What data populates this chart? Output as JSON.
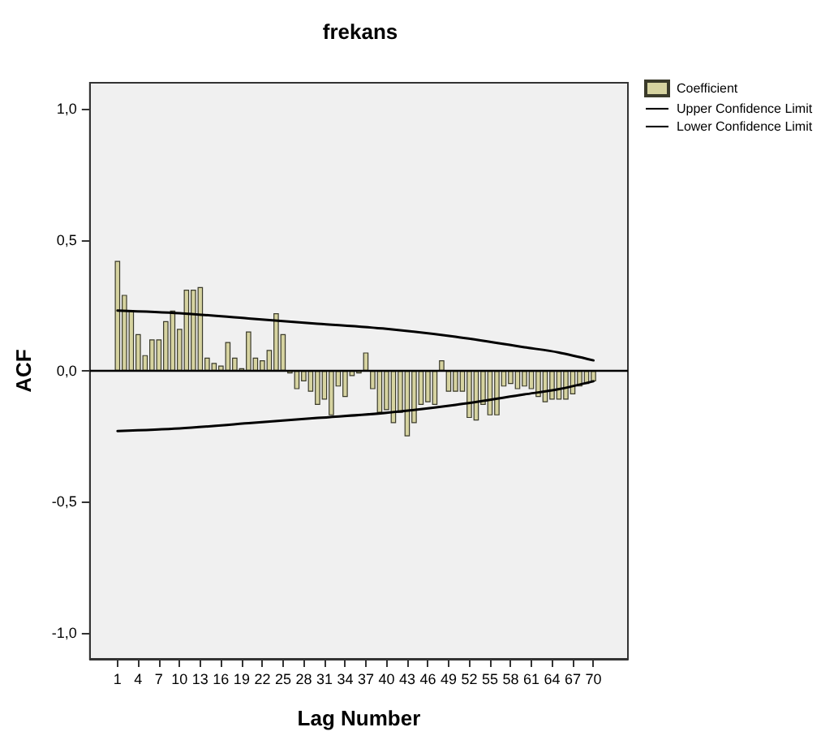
{
  "chart_data": {
    "type": "bar",
    "title": "frekans",
    "xlabel": "Lag Number",
    "ylabel": "ACF",
    "x": [
      1,
      2,
      3,
      4,
      5,
      6,
      7,
      8,
      9,
      10,
      11,
      12,
      13,
      14,
      15,
      16,
      17,
      18,
      19,
      20,
      21,
      22,
      23,
      24,
      25,
      26,
      27,
      28,
      29,
      30,
      31,
      32,
      33,
      34,
      35,
      36,
      37,
      38,
      39,
      40,
      41,
      42,
      43,
      44,
      45,
      46,
      47,
      48,
      49,
      50,
      51,
      52,
      53,
      54,
      55,
      56,
      57,
      58,
      59,
      60,
      61,
      62,
      63,
      64,
      65,
      66,
      67,
      68,
      69,
      70
    ],
    "series": [
      {
        "name": "Coefficient",
        "color": "#d6d3a0",
        "values": [
          0.42,
          0.29,
          0.23,
          0.14,
          0.06,
          0.12,
          0.12,
          0.19,
          0.23,
          0.16,
          0.31,
          0.31,
          0.32,
          0.05,
          0.03,
          0.02,
          0.11,
          0.05,
          0.01,
          0.15,
          0.05,
          0.04,
          0.08,
          0.22,
          0.14,
          -0.01,
          -0.07,
          -0.04,
          -0.08,
          -0.13,
          -0.11,
          -0.17,
          -0.06,
          -0.1,
          -0.02,
          -0.01,
          0.07,
          -0.07,
          -0.16,
          -0.15,
          -0.2,
          -0.16,
          -0.25,
          -0.2,
          -0.13,
          -0.12,
          -0.13,
          0.04,
          -0.08,
          -0.08,
          -0.08,
          -0.18,
          -0.19,
          -0.13,
          -0.17,
          -0.17,
          -0.06,
          -0.05,
          -0.07,
          -0.06,
          -0.07,
          -0.1,
          -0.12,
          -0.11,
          -0.11,
          -0.11,
          -0.09,
          -0.06,
          -0.05,
          -0.04
        ]
      },
      {
        "name": "Upper Confidence Limit",
        "type": "line",
        "color": "#000000",
        "x": [
          1,
          10,
          20,
          30,
          40,
          50,
          60,
          65,
          70
        ],
        "values": [
          0.23,
          0.22,
          0.2,
          0.18,
          0.16,
          0.13,
          0.09,
          0.07,
          0.04
        ]
      },
      {
        "name": "Lower Confidence Limit",
        "type": "line",
        "color": "#000000",
        "x": [
          1,
          10,
          20,
          30,
          40,
          50,
          60,
          65,
          70
        ],
        "values": [
          -0.23,
          -0.22,
          -0.2,
          -0.18,
          -0.16,
          -0.13,
          -0.09,
          -0.07,
          -0.04
        ]
      }
    ],
    "xlim": [
      -3,
      75
    ],
    "xticks": [
      1,
      4,
      7,
      10,
      13,
      16,
      19,
      22,
      25,
      28,
      31,
      34,
      37,
      40,
      43,
      46,
      49,
      52,
      55,
      58,
      61,
      64,
      67,
      70
    ],
    "ylim": [
      -1.1,
      1.1
    ],
    "yticks": [
      {
        "value": -1,
        "label": "-1,0"
      },
      {
        "value": -0.5,
        "label": "-0,5"
      },
      {
        "value": 0,
        "label": "0,0"
      },
      {
        "value": 0.5,
        "label": "0,5"
      },
      {
        "value": 1,
        "label": "1,0"
      }
    ],
    "ref_lines": [
      {
        "axis": "y",
        "value": 0,
        "color": "#000000"
      }
    ],
    "grid": false,
    "legend": "top right",
    "marker": "none"
  }
}
